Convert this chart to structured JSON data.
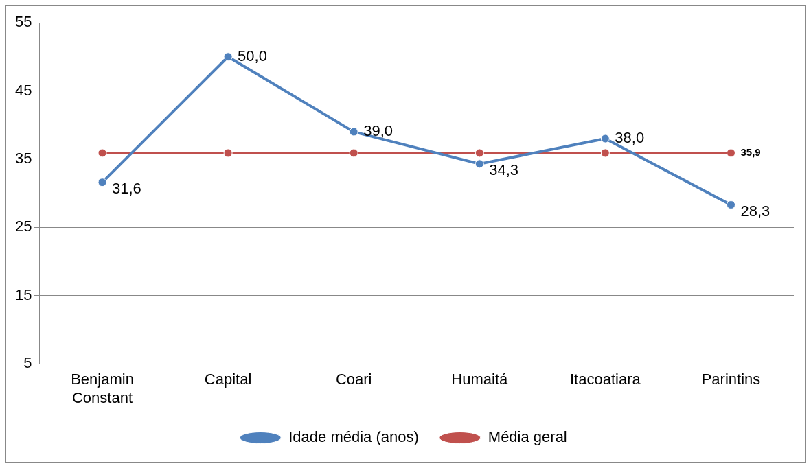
{
  "chart_data": {
    "type": "line",
    "categories": [
      "Benjamin Constant",
      "Capital",
      "Coari",
      "Humaitá",
      "Itacoatiara",
      "Parintins"
    ],
    "series": [
      {
        "name": "Idade média (anos)",
        "color": "#4f81bd",
        "values": [
          31.6,
          50.0,
          39.0,
          34.3,
          38.0,
          28.3
        ],
        "value_labels": [
          "31,6",
          "50,0",
          "39,0",
          "34,3",
          "38,0",
          "28,3"
        ]
      },
      {
        "name": "Média geral",
        "color": "#c0504d",
        "values": [
          35.9,
          35.9,
          35.9,
          35.9,
          35.9,
          35.9
        ],
        "value_labels": [
          null,
          null,
          null,
          null,
          null,
          "35,9"
        ]
      }
    ],
    "ylim": [
      5,
      55
    ],
    "yticks": [
      5,
      15,
      25,
      35,
      45,
      55
    ],
    "grid": "y",
    "legend": "bottom",
    "marker": "circle",
    "line_style": "solid"
  }
}
